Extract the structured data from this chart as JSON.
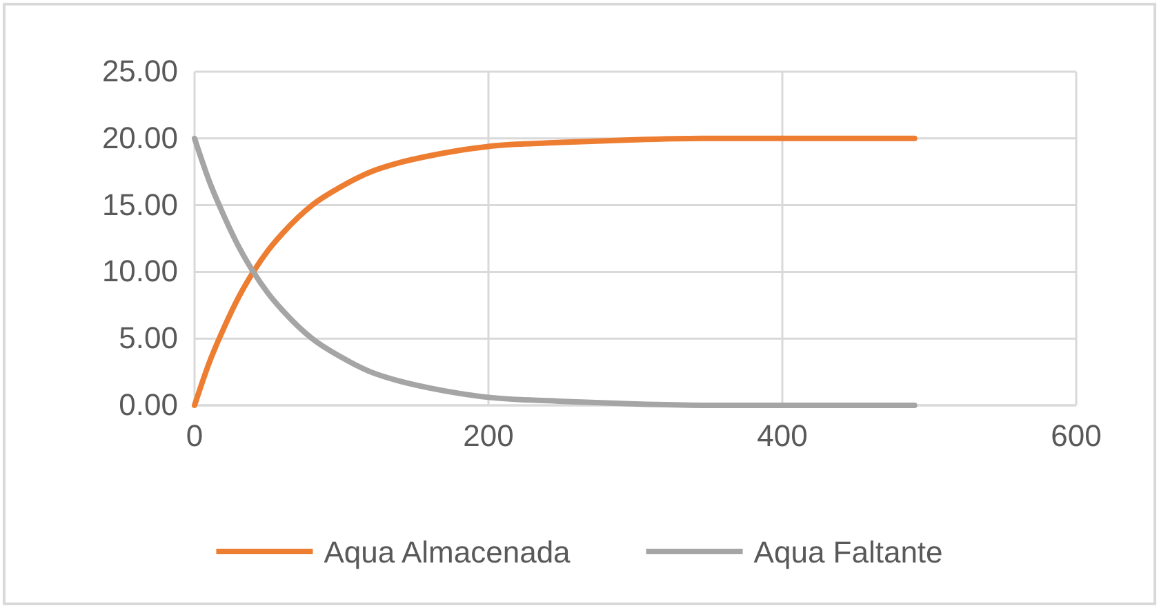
{
  "chart_data": {
    "type": "line",
    "x": [
      0,
      10,
      20,
      30,
      40,
      50,
      60,
      80,
      100,
      120,
      140,
      160,
      180,
      200,
      250,
      300,
      350,
      400,
      450,
      490
    ],
    "series": [
      {
        "name": "Aqua Almacenada",
        "color": "#ed7d31",
        "values": [
          0,
          3.2,
          5.8,
          8.1,
          10,
          11.6,
          12.9,
          15,
          16.4,
          17.5,
          18.2,
          18.7,
          19.1,
          19.4,
          19.7,
          19.9,
          20,
          20,
          20,
          20
        ]
      },
      {
        "name": "Aqua Faltante",
        "color": "#a5a5a5",
        "values": [
          20,
          16.8,
          14.2,
          11.9,
          10,
          8.4,
          7.1,
          5,
          3.6,
          2.5,
          1.8,
          1.3,
          0.9,
          0.6,
          0.3,
          0.1,
          0,
          0,
          0,
          0
        ]
      }
    ],
    "xlim": [
      0,
      600
    ],
    "xticks": [
      0,
      200,
      400,
      600
    ],
    "ylim": [
      0,
      25
    ],
    "yticks": [
      {
        "value": 0,
        "label": "0.00"
      },
      {
        "value": 5,
        "label": "5.00"
      },
      {
        "value": 10,
        "label": "10.00"
      },
      {
        "value": 15,
        "label": "15.00"
      },
      {
        "value": 20,
        "label": "20.00"
      },
      {
        "value": 25,
        "label": "25.00"
      }
    ],
    "grid": true,
    "legend": "bottom",
    "marker": "none",
    "line_style": "solid"
  }
}
